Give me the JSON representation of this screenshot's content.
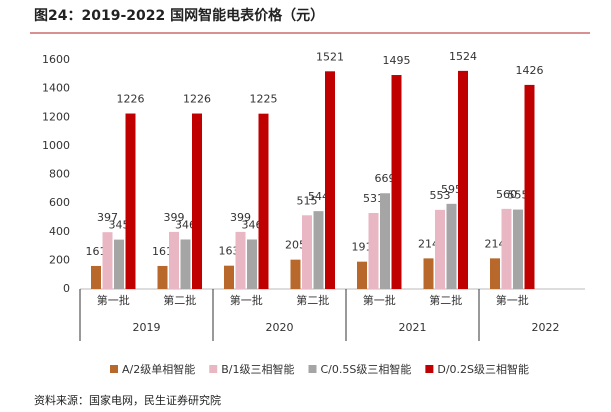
{
  "chart_data": {
    "type": "bar",
    "title": "图24：2019-2022 国网智能电表价格（元）",
    "source": "资料来源：国家电网，民生证券研究院",
    "groups": [
      {
        "label": "2019",
        "categories": [
          "第一批",
          "第二批"
        ]
      },
      {
        "label": "2020",
        "categories": [
          "第一批",
          "第二批"
        ]
      },
      {
        "label": "2021",
        "categories": [
          "第一批",
          "第二批"
        ]
      },
      {
        "label": "2022",
        "categories": [
          "第一批"
        ]
      }
    ],
    "series": [
      {
        "name": "A/2级单相智能",
        "color": "#b8682a",
        "values": [
          161,
          161,
          163,
          205,
          191,
          214,
          214
        ]
      },
      {
        "name": "B/1级三相智能",
        "color": "#e9b6c3",
        "values": [
          397,
          399,
          399,
          515,
          531,
          553,
          560
        ]
      },
      {
        "name": "C/0.5S级三相智能",
        "color": "#a5a5a5",
        "values": [
          345,
          346,
          346,
          544,
          669,
          595,
          555
        ]
      },
      {
        "name": "D/0.2S级三相智能",
        "color": "#c00000",
        "values": [
          1226,
          1226,
          1225,
          1521,
          1495,
          1524,
          1426
        ]
      }
    ],
    "ylim": [
      0,
      1600
    ],
    "yticks": [
      0,
      200,
      400,
      600,
      800,
      1000,
      1200,
      1400,
      1600
    ],
    "grid": false
  }
}
